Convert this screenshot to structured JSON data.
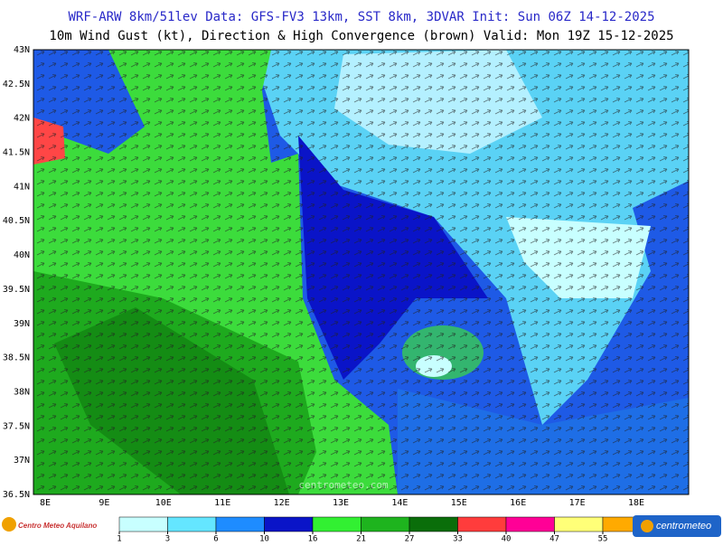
{
  "header": {
    "line1": "WRF-ARW 8km/51lev  Data: GFS-FV3 13km, SST 8km, 3DVAR  Init: Sun 06Z 14-12-2025",
    "line2": "10m Wind Gust (kt), Direction & High Convergence (brown)  Valid: Mon 19Z 15-12-2025"
  },
  "map": {
    "latitudes": [
      "43N",
      "42.5N",
      "42N",
      "41.5N",
      "41N",
      "40.5N",
      "40N",
      "39.5N",
      "39N",
      "38.5N",
      "38N",
      "37.5N",
      "37N",
      "36.5N"
    ],
    "longitudes": [
      "8E",
      "9E",
      "10E",
      "11E",
      "12E",
      "13E",
      "14E",
      "15E",
      "16E",
      "17E",
      "18E"
    ],
    "watermark": "centrometeo.com"
  },
  "legend": {
    "ticks": [
      1,
      3,
      6,
      10,
      16,
      21,
      27,
      33,
      40,
      47,
      55
    ],
    "colors": [
      "#c8ffff",
      "#64e6ff",
      "#1e8cff",
      "#0a14c8",
      "#32f032",
      "#1eb41e",
      "#0a6e0a",
      "#ff3c3c",
      "#ff0096",
      "#ffff78",
      "#ffaa00"
    ]
  },
  "logos": {
    "left": "Centro Meteo Aquilano",
    "right": "centrometeo"
  }
}
